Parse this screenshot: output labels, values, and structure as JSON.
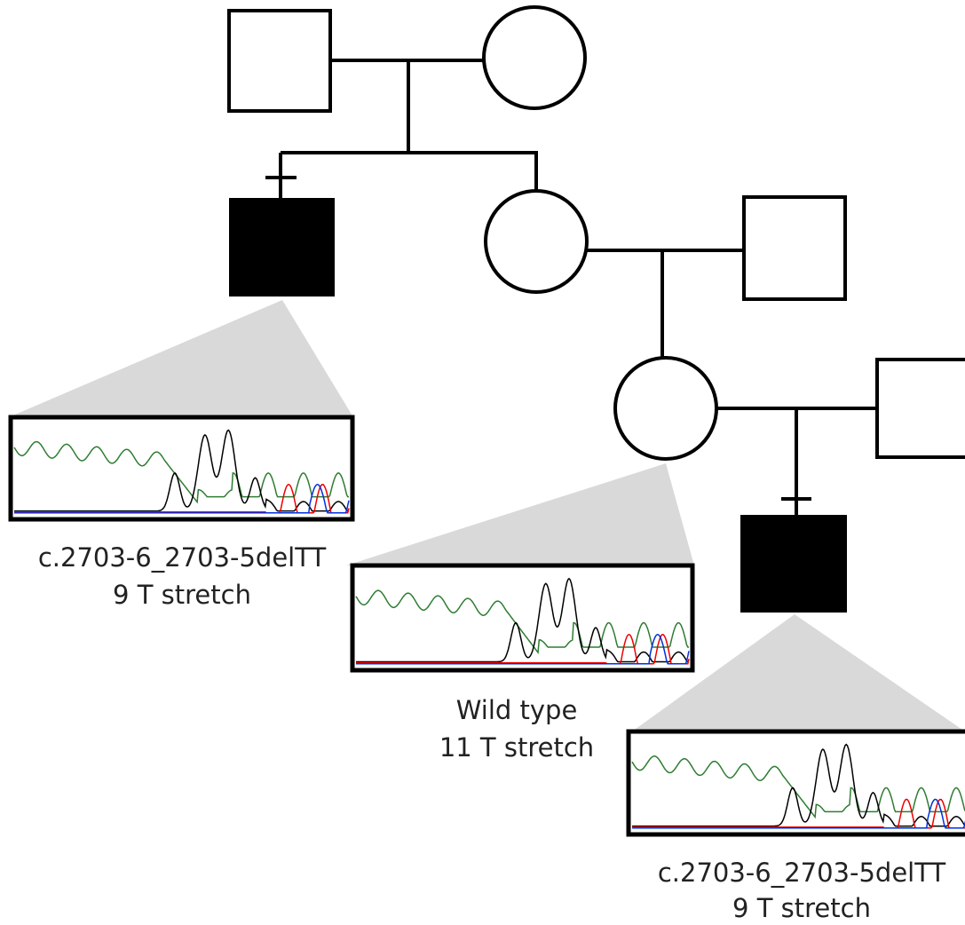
{
  "chromatograms": [
    {
      "variant": "c.2703-6_2703-5delTT",
      "stretch": "9 T stretch"
    },
    {
      "variant": "Wild type",
      "stretch": "11 T stretch"
    },
    {
      "variant": "c.2703-6_2703-5delTT",
      "stretch": "9 T stretch"
    }
  ]
}
